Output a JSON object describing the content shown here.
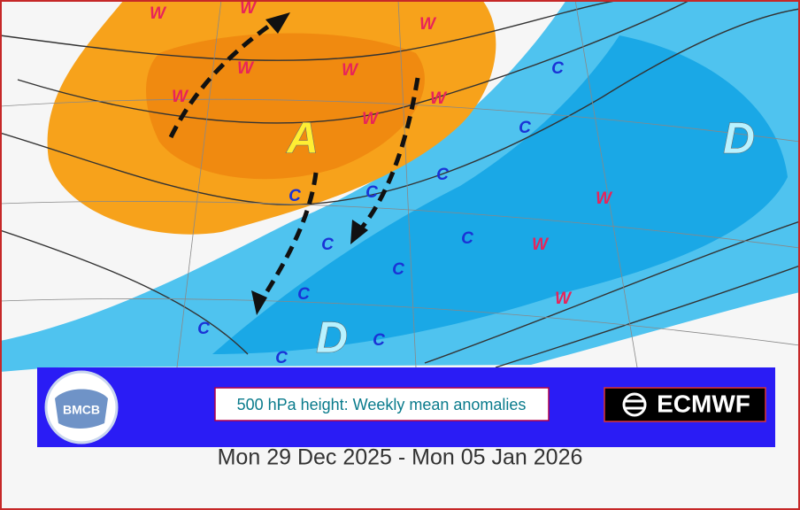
{
  "map": {
    "pressure_labels": [
      "A",
      "D",
      "D"
    ],
    "warm_labels": [
      "W",
      "W",
      "W",
      "W",
      "W",
      "W",
      "W",
      "W",
      "W",
      "W",
      "W"
    ],
    "cold_labels": [
      "C",
      "C",
      "C",
      "C",
      "C",
      "C",
      "C",
      "C",
      "C",
      "C",
      "C",
      "C"
    ]
  },
  "footer": {
    "logo": "BMCB",
    "caption": "500 hPa height: Weekly mean anomalies",
    "brand": "ECMWF",
    "date_range": "Mon 29 Dec 2025 - Mon 05 Jan 2026"
  }
}
